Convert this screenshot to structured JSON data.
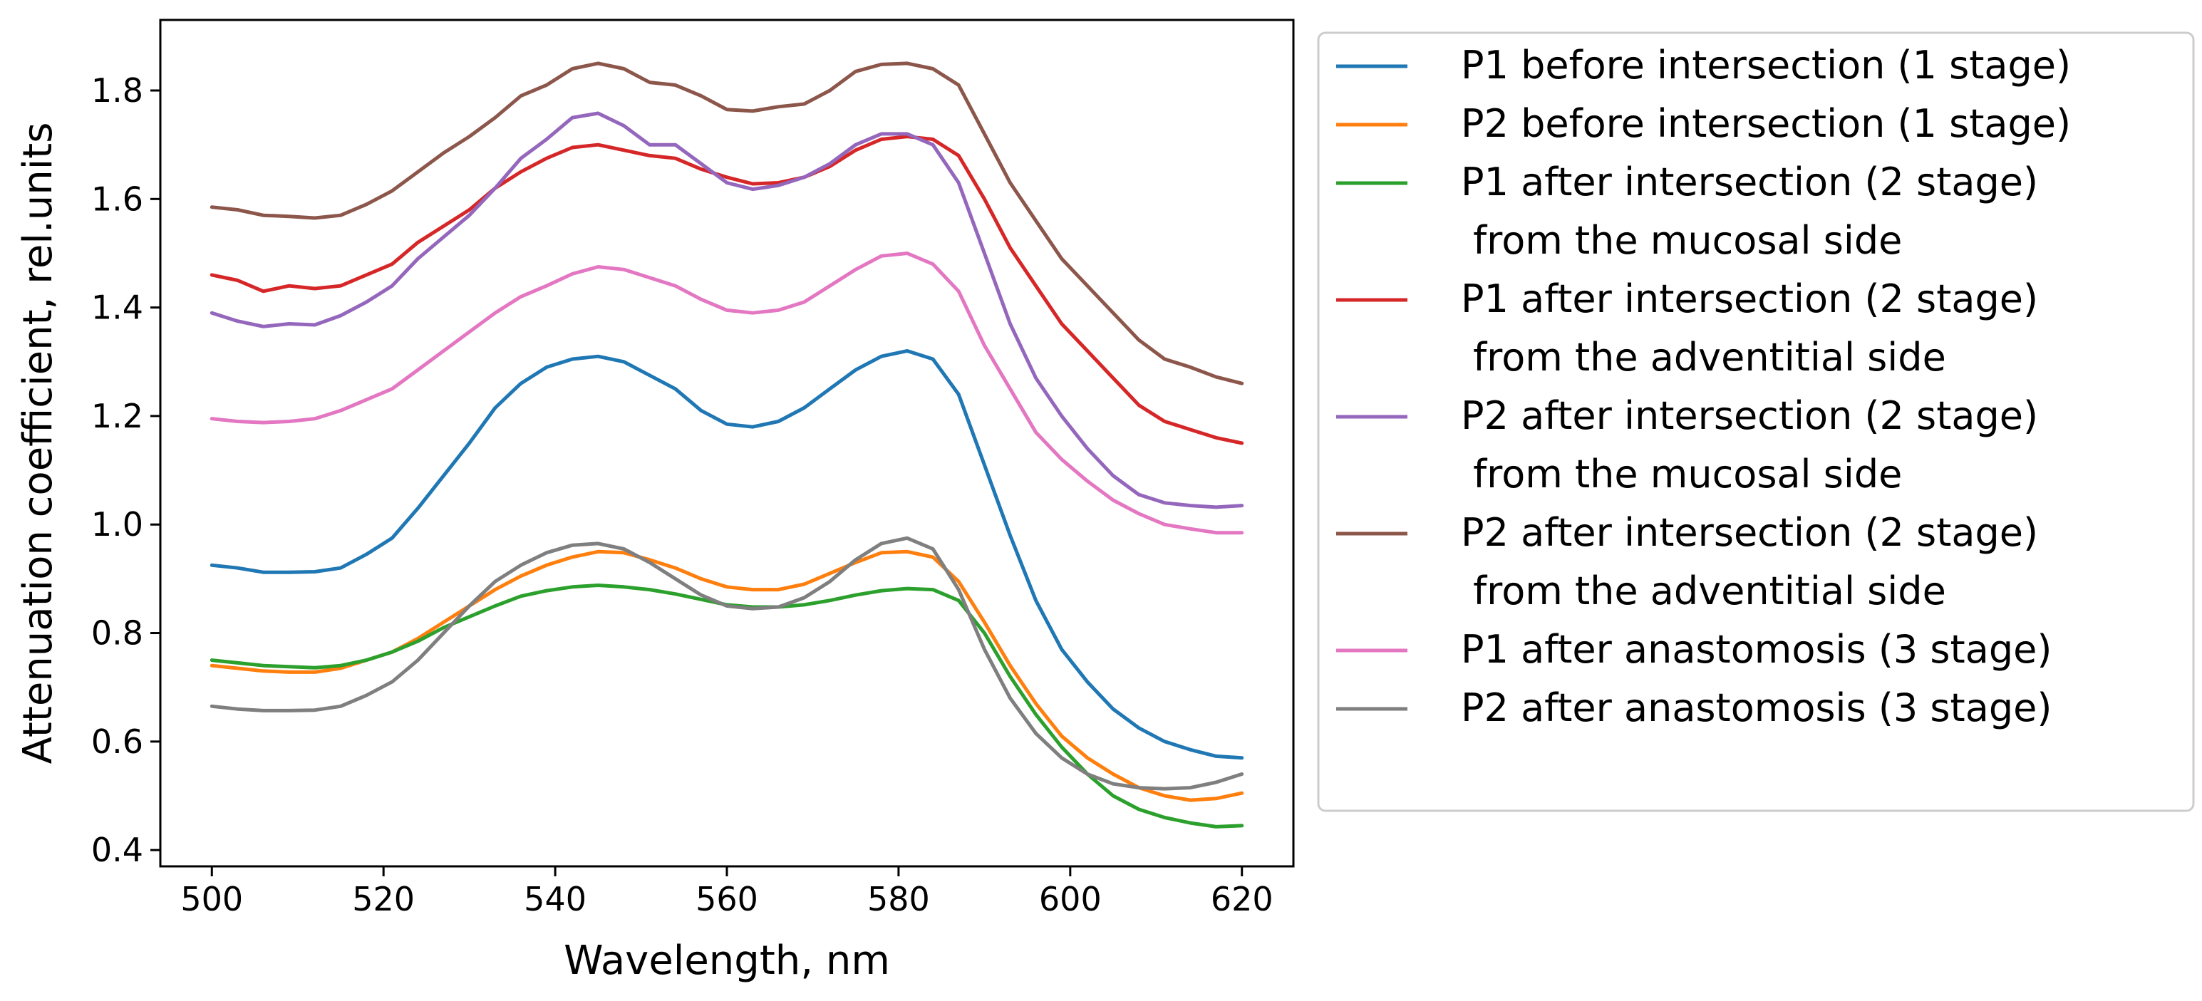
{
  "chart_data": {
    "type": "line",
    "title": "",
    "xlabel": "Wavelength, nm",
    "ylabel": "Attenuation coefficient, rel.units",
    "xlim": [
      494,
      626
    ],
    "ylim": [
      0.37,
      1.93
    ],
    "x_ticks": [
      500,
      520,
      540,
      560,
      580,
      600,
      620
    ],
    "y_ticks": [
      0.4,
      0.6,
      0.8,
      1.0,
      1.2,
      1.4,
      1.6,
      1.8
    ],
    "x_tick_labels": [
      "500",
      "520",
      "540",
      "560",
      "580",
      "600",
      "620"
    ],
    "y_tick_labels": [
      "0.4",
      "0.6",
      "0.8",
      "1.0",
      "1.2",
      "1.4",
      "1.6",
      "1.8"
    ],
    "grid": false,
    "legend_position": "outside-right",
    "series": [
      {
        "name": "P1 before intersection (1 stage)",
        "label_lines": [
          "P1 before intersection (1 stage)"
        ],
        "color": "#1f77b4",
        "x": [
          500,
          503,
          506,
          509,
          512,
          515,
          518,
          521,
          524,
          527,
          530,
          533,
          536,
          539,
          542,
          545,
          548,
          551,
          554,
          557,
          560,
          563,
          566,
          569,
          572,
          575,
          578,
          581,
          584,
          587,
          590,
          593,
          596,
          599,
          602,
          605,
          608,
          611,
          614,
          617,
          620
        ],
        "y": [
          0.925,
          0.92,
          0.912,
          0.912,
          0.913,
          0.92,
          0.945,
          0.975,
          1.03,
          1.09,
          1.15,
          1.215,
          1.26,
          1.29,
          1.305,
          1.31,
          1.3,
          1.275,
          1.25,
          1.21,
          1.185,
          1.18,
          1.19,
          1.215,
          1.25,
          1.285,
          1.31,
          1.32,
          1.305,
          1.24,
          1.11,
          0.98,
          0.86,
          0.77,
          0.71,
          0.66,
          0.625,
          0.6,
          0.585,
          0.573,
          0.57
        ]
      },
      {
        "name": "P2 before intersection (1 stage)",
        "label_lines": [
          "P2 before intersection (1 stage)"
        ],
        "color": "#ff7f0e",
        "x": [
          500,
          503,
          506,
          509,
          512,
          515,
          518,
          521,
          524,
          527,
          530,
          533,
          536,
          539,
          542,
          545,
          548,
          551,
          554,
          557,
          560,
          563,
          566,
          569,
          572,
          575,
          578,
          581,
          584,
          587,
          590,
          593,
          596,
          599,
          602,
          605,
          608,
          611,
          614,
          617,
          620
        ],
        "y": [
          0.74,
          0.735,
          0.73,
          0.728,
          0.728,
          0.735,
          0.75,
          0.765,
          0.79,
          0.82,
          0.85,
          0.88,
          0.905,
          0.925,
          0.94,
          0.95,
          0.948,
          0.935,
          0.92,
          0.9,
          0.885,
          0.88,
          0.88,
          0.89,
          0.91,
          0.93,
          0.948,
          0.95,
          0.94,
          0.895,
          0.82,
          0.74,
          0.67,
          0.61,
          0.57,
          0.54,
          0.515,
          0.5,
          0.492,
          0.495,
          0.505
        ]
      },
      {
        "name": "P1 after intersection (2 stage) from the mucosal side",
        "label_lines": [
          "P1 after intersection (2 stage)",
          " from the mucosal side"
        ],
        "color": "#2ca02c",
        "x": [
          500,
          503,
          506,
          509,
          512,
          515,
          518,
          521,
          524,
          527,
          530,
          533,
          536,
          539,
          542,
          545,
          548,
          551,
          554,
          557,
          560,
          563,
          566,
          569,
          572,
          575,
          578,
          581,
          584,
          587,
          590,
          593,
          596,
          599,
          602,
          605,
          608,
          611,
          614,
          617,
          620
        ],
        "y": [
          0.75,
          0.745,
          0.74,
          0.738,
          0.736,
          0.74,
          0.75,
          0.765,
          0.785,
          0.81,
          0.83,
          0.85,
          0.868,
          0.878,
          0.885,
          0.888,
          0.885,
          0.88,
          0.872,
          0.862,
          0.852,
          0.848,
          0.848,
          0.852,
          0.86,
          0.87,
          0.878,
          0.882,
          0.88,
          0.86,
          0.8,
          0.72,
          0.65,
          0.59,
          0.54,
          0.5,
          0.475,
          0.46,
          0.45,
          0.443,
          0.445
        ]
      },
      {
        "name": "P1 after intersection (2 stage) from the adventitial side",
        "label_lines": [
          "P1 after intersection (2 stage)",
          " from the adventitial side"
        ],
        "color": "#d62728",
        "x": [
          500,
          503,
          506,
          509,
          512,
          515,
          518,
          521,
          524,
          527,
          530,
          533,
          536,
          539,
          542,
          545,
          548,
          551,
          554,
          557,
          560,
          563,
          566,
          569,
          572,
          575,
          578,
          581,
          584,
          587,
          590,
          593,
          596,
          599,
          602,
          605,
          608,
          611,
          614,
          617,
          620
        ],
        "y": [
          1.46,
          1.45,
          1.43,
          1.44,
          1.435,
          1.44,
          1.46,
          1.48,
          1.52,
          1.55,
          1.58,
          1.62,
          1.65,
          1.675,
          1.695,
          1.7,
          1.69,
          1.68,
          1.675,
          1.655,
          1.64,
          1.628,
          1.63,
          1.64,
          1.66,
          1.69,
          1.71,
          1.715,
          1.71,
          1.68,
          1.6,
          1.51,
          1.44,
          1.37,
          1.32,
          1.27,
          1.22,
          1.19,
          1.175,
          1.16,
          1.15
        ]
      },
      {
        "name": "P2 after intersection (2 stage) from the mucosal side",
        "label_lines": [
          "P2 after intersection (2 stage)",
          " from the mucosal side"
        ],
        "color": "#9467bd",
        "x": [
          500,
          503,
          506,
          509,
          512,
          515,
          518,
          521,
          524,
          527,
          530,
          533,
          536,
          539,
          542,
          545,
          548,
          551,
          554,
          557,
          560,
          563,
          566,
          569,
          572,
          575,
          578,
          581,
          584,
          587,
          590,
          593,
          596,
          599,
          602,
          605,
          608,
          611,
          614,
          617,
          620
        ],
        "y": [
          1.39,
          1.375,
          1.365,
          1.37,
          1.368,
          1.385,
          1.41,
          1.44,
          1.49,
          1.53,
          1.57,
          1.62,
          1.675,
          1.71,
          1.75,
          1.758,
          1.735,
          1.7,
          1.7,
          1.665,
          1.63,
          1.618,
          1.625,
          1.64,
          1.665,
          1.7,
          1.72,
          1.72,
          1.7,
          1.63,
          1.5,
          1.37,
          1.27,
          1.2,
          1.14,
          1.09,
          1.055,
          1.04,
          1.035,
          1.032,
          1.035
        ]
      },
      {
        "name": "P2 after intersection (2 stage) from the adventitial side",
        "label_lines": [
          "P2 after intersection (2 stage)",
          " from the adventitial side"
        ],
        "color": "#8c564b",
        "x": [
          500,
          503,
          506,
          509,
          512,
          515,
          518,
          521,
          524,
          527,
          530,
          533,
          536,
          539,
          542,
          545,
          548,
          551,
          554,
          557,
          560,
          563,
          566,
          569,
          572,
          575,
          578,
          581,
          584,
          587,
          590,
          593,
          596,
          599,
          602,
          605,
          608,
          611,
          614,
          617,
          620
        ],
        "y": [
          1.585,
          1.58,
          1.57,
          1.568,
          1.565,
          1.57,
          1.59,
          1.615,
          1.65,
          1.685,
          1.715,
          1.75,
          1.79,
          1.81,
          1.84,
          1.85,
          1.84,
          1.815,
          1.81,
          1.79,
          1.765,
          1.762,
          1.77,
          1.775,
          1.8,
          1.835,
          1.848,
          1.85,
          1.84,
          1.81,
          1.72,
          1.63,
          1.56,
          1.49,
          1.44,
          1.39,
          1.34,
          1.305,
          1.29,
          1.272,
          1.26
        ]
      },
      {
        "name": "P1 after anastomosis (3 stage)",
        "label_lines": [
          "P1 after anastomosis (3 stage)"
        ],
        "color": "#e377c2",
        "x": [
          500,
          503,
          506,
          509,
          512,
          515,
          518,
          521,
          524,
          527,
          530,
          533,
          536,
          539,
          542,
          545,
          548,
          551,
          554,
          557,
          560,
          563,
          566,
          569,
          572,
          575,
          578,
          581,
          584,
          587,
          590,
          593,
          596,
          599,
          602,
          605,
          608,
          611,
          614,
          617,
          620
        ],
        "y": [
          1.195,
          1.19,
          1.188,
          1.19,
          1.195,
          1.21,
          1.23,
          1.25,
          1.285,
          1.32,
          1.355,
          1.39,
          1.42,
          1.44,
          1.462,
          1.475,
          1.47,
          1.455,
          1.44,
          1.415,
          1.395,
          1.39,
          1.395,
          1.41,
          1.44,
          1.47,
          1.495,
          1.5,
          1.48,
          1.43,
          1.33,
          1.25,
          1.17,
          1.12,
          1.08,
          1.045,
          1.02,
          1.0,
          0.992,
          0.985,
          0.985
        ]
      },
      {
        "name": "P2 after anastomosis (3 stage)",
        "label_lines": [
          "P2 after anastomosis (3 stage)"
        ],
        "color": "#7f7f7f",
        "x": [
          500,
          503,
          506,
          509,
          512,
          515,
          518,
          521,
          524,
          527,
          530,
          533,
          536,
          539,
          542,
          545,
          548,
          551,
          554,
          557,
          560,
          563,
          566,
          569,
          572,
          575,
          578,
          581,
          584,
          587,
          590,
          593,
          596,
          599,
          602,
          605,
          608,
          611,
          614,
          617,
          620
        ],
        "y": [
          0.665,
          0.66,
          0.657,
          0.657,
          0.658,
          0.665,
          0.685,
          0.71,
          0.75,
          0.8,
          0.85,
          0.895,
          0.925,
          0.948,
          0.962,
          0.965,
          0.955,
          0.93,
          0.9,
          0.87,
          0.85,
          0.845,
          0.848,
          0.865,
          0.895,
          0.935,
          0.965,
          0.975,
          0.955,
          0.88,
          0.77,
          0.68,
          0.615,
          0.57,
          0.54,
          0.522,
          0.515,
          0.513,
          0.515,
          0.525,
          0.54
        ]
      }
    ]
  }
}
